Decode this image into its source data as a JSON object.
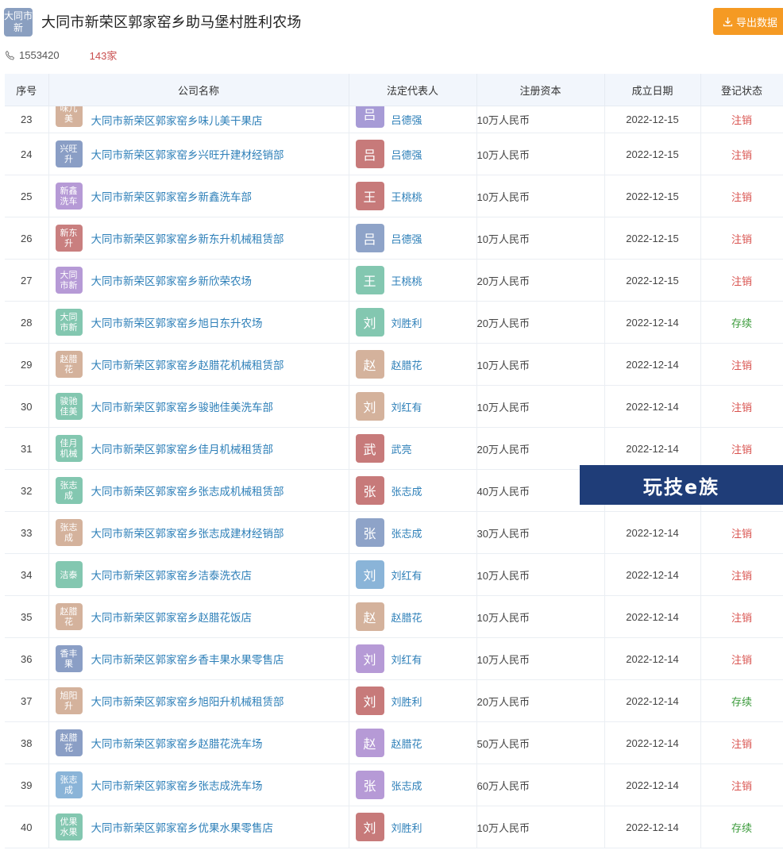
{
  "header": {
    "logo_text": "大同市新",
    "title": "大同市新荣区郭家窑乡助马堡村胜利农场",
    "export_label": "导出数据",
    "phone": "1553420",
    "count": "143家"
  },
  "columns": [
    "序号",
    "公司名称",
    "法定代表人",
    "注册资本",
    "成立日期",
    "登记状态"
  ],
  "rows": [
    {
      "idx": "23",
      "logo": "味儿美",
      "logo_color": "#d4b29c",
      "name": "大同市新荣区郭家窑乡味儿美干果店",
      "rep_initial": "吕",
      "rep_color": "#a79bd6",
      "rep": "吕德强",
      "capital": "10万人民币",
      "date": "2022-12-15",
      "status": "注销",
      "status_type": "cancel"
    },
    {
      "idx": "24",
      "logo": "兴旺升",
      "logo_color": "#8a9ec5",
      "name": "大同市新荣区郭家窑乡兴旺升建材经销部",
      "rep_initial": "吕",
      "rep_color": "#c77a7a",
      "rep": "吕德强",
      "capital": "10万人民币",
      "date": "2022-12-15",
      "status": "注销",
      "status_type": "cancel"
    },
    {
      "idx": "25",
      "logo": "新鑫洗车",
      "logo_color": "#b69ad6",
      "name": "大同市新荣区郭家窑乡新鑫洗车部",
      "rep_initial": "王",
      "rep_color": "#c77a7a",
      "rep": "王桃桃",
      "capital": "10万人民币",
      "date": "2022-12-15",
      "status": "注销",
      "status_type": "cancel"
    },
    {
      "idx": "26",
      "logo": "新东升",
      "logo_color": "#c97f7f",
      "name": "大同市新荣区郭家窑乡新东升机械租赁部",
      "rep_initial": "吕",
      "rep_color": "#8ea3c8",
      "rep": "吕德强",
      "capital": "10万人民币",
      "date": "2022-12-15",
      "status": "注销",
      "status_type": "cancel"
    },
    {
      "idx": "27",
      "logo": "大同市新",
      "logo_color": "#b69ad6",
      "name": "大同市新荣区郭家窑乡新欣荣农场",
      "rep_initial": "王",
      "rep_color": "#83c7b0",
      "rep": "王桃桃",
      "capital": "20万人民币",
      "date": "2022-12-15",
      "status": "注销",
      "status_type": "cancel"
    },
    {
      "idx": "28",
      "logo": "大同市新",
      "logo_color": "#83c7b0",
      "name": "大同市新荣区郭家窑乡旭日东升农场",
      "rep_initial": "刘",
      "rep_color": "#83c7b0",
      "rep": "刘胜利",
      "capital": "20万人民币",
      "date": "2022-12-14",
      "status": "存续",
      "status_type": "active"
    },
    {
      "idx": "29",
      "logo": "赵腊花",
      "logo_color": "#d4b29c",
      "name": "大同市新荣区郭家窑乡赵腊花机械租赁部",
      "rep_initial": "赵",
      "rep_color": "#d4b29c",
      "rep": "赵腊花",
      "capital": "10万人民币",
      "date": "2022-12-14",
      "status": "注销",
      "status_type": "cancel"
    },
    {
      "idx": "30",
      "logo": "骏驰佳美",
      "logo_color": "#83c7b0",
      "name": "大同市新荣区郭家窑乡骏驰佳美洗车部",
      "rep_initial": "刘",
      "rep_color": "#d4b29c",
      "rep": "刘红有",
      "capital": "10万人民币",
      "date": "2022-12-14",
      "status": "注销",
      "status_type": "cancel"
    },
    {
      "idx": "31",
      "logo": "佳月机械",
      "logo_color": "#83c7b0",
      "name": "大同市新荣区郭家窑乡佳月机械租赁部",
      "rep_initial": "武",
      "rep_color": "#c77a7a",
      "rep": "武亮",
      "capital": "20万人民币",
      "date": "2022-12-14",
      "status": "注销",
      "status_type": "cancel"
    },
    {
      "idx": "32",
      "logo": "张志成",
      "logo_color": "#83c7b0",
      "name": "大同市新荣区郭家窑乡张志成机械租赁部",
      "rep_initial": "张",
      "rep_color": "#c77a7a",
      "rep": "张志成",
      "capital": "40万人民币",
      "date": "",
      "status": "",
      "status_type": "cancel"
    },
    {
      "idx": "33",
      "logo": "张志成",
      "logo_color": "#d4b29c",
      "name": "大同市新荣区郭家窑乡张志成建材经销部",
      "rep_initial": "张",
      "rep_color": "#8ea3c8",
      "rep": "张志成",
      "capital": "30万人民币",
      "date": "2022-12-14",
      "status": "注销",
      "status_type": "cancel"
    },
    {
      "idx": "34",
      "logo": "洁泰",
      "logo_color": "#83c7b0",
      "name": "大同市新荣区郭家窑乡洁泰洗衣店",
      "rep_initial": "刘",
      "rep_color": "#8ab4d8",
      "rep": "刘红有",
      "capital": "10万人民币",
      "date": "2022-12-14",
      "status": "注销",
      "status_type": "cancel"
    },
    {
      "idx": "35",
      "logo": "赵腊花",
      "logo_color": "#d4b29c",
      "name": "大同市新荣区郭家窑乡赵腊花饭店",
      "rep_initial": "赵",
      "rep_color": "#d4b29c",
      "rep": "赵腊花",
      "capital": "10万人民币",
      "date": "2022-12-14",
      "status": "注销",
      "status_type": "cancel"
    },
    {
      "idx": "36",
      "logo": "香丰果",
      "logo_color": "#8a9ec5",
      "name": "大同市新荣区郭家窑乡香丰果水果零售店",
      "rep_initial": "刘",
      "rep_color": "#b69ad6",
      "rep": "刘红有",
      "capital": "10万人民币",
      "date": "2022-12-14",
      "status": "注销",
      "status_type": "cancel"
    },
    {
      "idx": "37",
      "logo": "旭阳升",
      "logo_color": "#d4b29c",
      "name": "大同市新荣区郭家窑乡旭阳升机械租赁部",
      "rep_initial": "刘",
      "rep_color": "#c77a7a",
      "rep": "刘胜利",
      "capital": "20万人民币",
      "date": "2022-12-14",
      "status": "存续",
      "status_type": "active"
    },
    {
      "idx": "38",
      "logo": "赵腊花",
      "logo_color": "#8a9ec5",
      "name": "大同市新荣区郭家窑乡赵腊花洗车场",
      "rep_initial": "赵",
      "rep_color": "#b69ad6",
      "rep": "赵腊花",
      "capital": "50万人民币",
      "date": "2022-12-14",
      "status": "注销",
      "status_type": "cancel"
    },
    {
      "idx": "39",
      "logo": "张志成",
      "logo_color": "#8ab4d8",
      "name": "大同市新荣区郭家窑乡张志成洗车场",
      "rep_initial": "张",
      "rep_color": "#b69ad6",
      "rep": "张志成",
      "capital": "60万人民币",
      "date": "2022-12-14",
      "status": "注销",
      "status_type": "cancel"
    },
    {
      "idx": "40",
      "logo": "优果水果",
      "logo_color": "#83c7b0",
      "name": "大同市新荣区郭家窑乡优果水果零售店",
      "rep_initial": "刘",
      "rep_color": "#c77a7a",
      "rep": "刘胜利",
      "capital": "10万人民币",
      "date": "2022-12-14",
      "status": "存续",
      "status_type": "active"
    }
  ],
  "watermark": "玩技e族"
}
